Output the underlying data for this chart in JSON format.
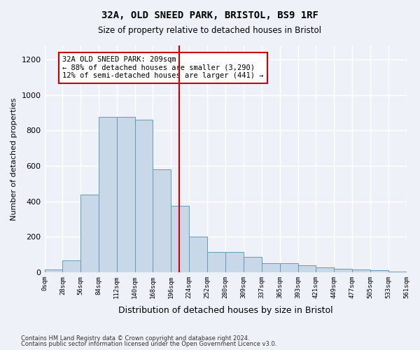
{
  "title1": "32A, OLD SNEED PARK, BRISTOL, BS9 1RF",
  "title2": "Size of property relative to detached houses in Bristol",
  "xlabel": "Distribution of detached houses by size in Bristol",
  "ylabel": "Number of detached properties",
  "bar_color": "#c8d8e8",
  "bar_edge_color": "#6699bb",
  "vline_color": "#cc0000",
  "vline_x": 209,
  "annotation_text": "32A OLD SNEED PARK: 209sqm\n← 88% of detached houses are smaller (3,290)\n12% of semi-detached houses are larger (441) →",
  "bin_edges": [
    0,
    28,
    56,
    84,
    112,
    140,
    168,
    196,
    224,
    252,
    280,
    309,
    337,
    365,
    393,
    421,
    449,
    477,
    505,
    533,
    561
  ],
  "bar_heights": [
    15,
    67,
    437,
    877,
    877,
    862,
    579,
    375,
    200,
    115,
    115,
    85,
    50,
    50,
    40,
    25,
    20,
    15,
    10,
    5
  ],
  "ylim": [
    0,
    1280
  ],
  "yticks": [
    0,
    200,
    400,
    600,
    800,
    1000,
    1200
  ],
  "footnote1": "Contains HM Land Registry data © Crown copyright and database right 2024.",
  "footnote2": "Contains public sector information licensed under the Open Government Licence v3.0.",
  "background_color": "#eef2f8",
  "grid_color": "#ffffff",
  "annotation_box_color": "#ffffff",
  "annotation_box_edge": "#cc0000"
}
